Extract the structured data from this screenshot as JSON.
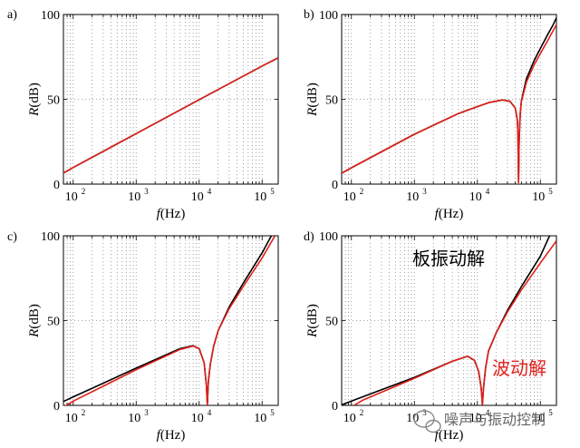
{
  "colors": {
    "black_curve": "#000000",
    "red_curve": "#e0201b",
    "grid": "#8a8a8a",
    "watermark": "#666666"
  },
  "panels": [
    {
      "label": "a)",
      "xlabel_italic": "f",
      "xlabel_rest": "(Hz)",
      "ylabel_italic": "R",
      "ylabel_rest": "(dB)",
      "yticks": [
        "0",
        "50",
        "100"
      ],
      "xticks": [
        {
          "base": "10",
          "exp": "2"
        },
        {
          "base": "10",
          "exp": "3"
        },
        {
          "base": "10",
          "exp": "4"
        },
        {
          "base": "10",
          "exp": "5"
        }
      ]
    },
    {
      "label": "b)",
      "xlabel_italic": "f",
      "xlabel_rest": "(Hz)",
      "ylabel_italic": "R",
      "ylabel_rest": "(dB)",
      "yticks": [
        "0",
        "50",
        "100"
      ],
      "xticks": [
        {
          "base": "10",
          "exp": "2"
        },
        {
          "base": "10",
          "exp": "3"
        },
        {
          "base": "10",
          "exp": "4"
        },
        {
          "base": "10",
          "exp": "5"
        }
      ]
    },
    {
      "label": "c)",
      "xlabel_italic": "f",
      "xlabel_rest": "(Hz)",
      "ylabel_italic": "R",
      "ylabel_rest": "(dB)",
      "yticks": [
        "0",
        "50",
        "100"
      ],
      "xticks": [
        {
          "base": "10",
          "exp": "2"
        },
        {
          "base": "10",
          "exp": "3"
        },
        {
          "base": "10",
          "exp": "4"
        },
        {
          "base": "10",
          "exp": "5"
        }
      ]
    },
    {
      "label": "d)",
      "xlabel_italic": "f",
      "xlabel_rest": "(Hz)",
      "ylabel_italic": "R",
      "ylabel_rest": "(dB)",
      "yticks": [
        "0",
        "50",
        "100"
      ],
      "xticks": [
        {
          "base": "10",
          "exp": "2"
        },
        {
          "base": "10",
          "exp": "3"
        },
        {
          "base": "10",
          "exp": "4"
        },
        {
          "base": "10",
          "exp": "5"
        }
      ],
      "annotations": [
        {
          "text": "板振动解",
          "color": "#000000"
        },
        {
          "text": "波动解",
          "color": "#e0201b"
        }
      ]
    }
  ],
  "watermark": {
    "text": "噪声与振动控制",
    "icon": "wechat-icon"
  },
  "chart_data": [
    {
      "type": "line",
      "panel": "a)",
      "xscale": "log",
      "xlim": [
        70,
        180000
      ],
      "ylim": [
        0,
        100
      ],
      "xlabel": "f(Hz)",
      "ylabel": "R(dB)",
      "grid": true,
      "series": [
        {
          "color": "#000000",
          "x": [
            70,
            100,
            1000,
            10000,
            100000,
            180000
          ],
          "y": [
            6.5,
            9.8,
            29.8,
            49.8,
            69.6,
            74.5
          ]
        },
        {
          "color": "#e0201b",
          "x": [
            70,
            100,
            1000,
            10000,
            100000,
            180000
          ],
          "y": [
            6.5,
            9.8,
            29.8,
            49.8,
            69.6,
            74.5
          ]
        }
      ]
    },
    {
      "type": "line",
      "panel": "b)",
      "xscale": "log",
      "xlim": [
        70,
        180000
      ],
      "ylim": [
        0,
        100
      ],
      "xlabel": "f(Hz)",
      "ylabel": "R(dB)",
      "grid": true,
      "series": [
        {
          "color": "#000000",
          "x": [
            70,
            100,
            1000,
            5000,
            15000,
            25000,
            33000,
            40000,
            43000,
            44000,
            45000,
            46000,
            47000,
            48000,
            50000,
            60000,
            80000,
            100000,
            130000,
            160000,
            180000
          ],
          "y": [
            6.4,
            9.6,
            29.4,
            41.6,
            48.0,
            49.6,
            48.8,
            44.8,
            38.0,
            30.0,
            1.0,
            24.0,
            35.0,
            42.0,
            49.0,
            62.0,
            73.0,
            80.0,
            88.0,
            94.0,
            98.0
          ]
        },
        {
          "color": "#e0201b",
          "x": [
            70,
            100,
            1000,
            5000,
            15000,
            25000,
            33000,
            40000,
            43000,
            44000,
            45000,
            46000,
            47000,
            48000,
            50000,
            60000,
            80000,
            100000,
            130000,
            160000,
            180000
          ],
          "y": [
            6.4,
            9.6,
            29.4,
            41.6,
            48.0,
            49.6,
            48.8,
            44.8,
            38.0,
            30.0,
            1.0,
            24.0,
            35.0,
            42.0,
            48.5,
            60.0,
            70.5,
            77.0,
            84.5,
            90.5,
            94.0
          ]
        }
      ]
    },
    {
      "type": "line",
      "panel": "c)",
      "xscale": "log",
      "xlim": [
        70,
        180000
      ],
      "ylim": [
        0,
        100
      ],
      "xlabel": "f(Hz)",
      "ylabel": "R(dB)",
      "grid": true,
      "series": [
        {
          "color": "#000000",
          "x": [
            70,
            100,
            1000,
            5000,
            8000,
            10000,
            12000,
            13000,
            13500,
            14000,
            15000,
            17000,
            20000,
            30000,
            50000,
            100000,
            140000
          ],
          "y": [
            2.3,
            5.0,
            22.0,
            33.5,
            35.2,
            33.5,
            25.0,
            12.0,
            0.5,
            14.0,
            24.0,
            35.0,
            44.0,
            58.0,
            72.0,
            90.0,
            100.0
          ]
        },
        {
          "color": "#e0201b",
          "x": [
            70,
            100,
            1000,
            5000,
            8000,
            10000,
            12000,
            13000,
            13500,
            14000,
            15000,
            17000,
            20000,
            30000,
            50000,
            100000,
            160000
          ],
          "y": [
            -1.0,
            2.5,
            21.0,
            33.0,
            35.0,
            33.5,
            25.0,
            12.0,
            0.5,
            14.0,
            24.0,
            35.0,
            44.0,
            57.0,
            70.0,
            87.0,
            100.0
          ]
        }
      ]
    },
    {
      "type": "line",
      "panel": "d)",
      "xscale": "log",
      "xlim": [
        70,
        180000
      ],
      "ylim": [
        0,
        100
      ],
      "xlabel": "f(Hz)",
      "ylabel": "R(dB)",
      "grid": true,
      "series": [
        {
          "color": "#000000",
          "x": [
            70,
            100,
            1000,
            4000,
            7000,
            9000,
            10500,
            11500,
            12000,
            12500,
            13500,
            15000,
            20000,
            30000,
            50000,
            100000,
            140000
          ],
          "y": [
            0.3,
            2.5,
            16.5,
            26.0,
            29.0,
            26.5,
            20.0,
            10.0,
            0.5,
            10.0,
            22.0,
            32.0,
            43.0,
            56.0,
            70.0,
            88.0,
            100.0
          ]
        },
        {
          "color": "#e0201b",
          "x": [
            110,
            150,
            1000,
            4000,
            7000,
            9000,
            10500,
            11500,
            12000,
            12500,
            13500,
            15000,
            20000,
            30000,
            50000,
            100000,
            180000
          ],
          "y": [
            0.0,
            3.0,
            16.0,
            26.0,
            29.0,
            26.5,
            20.0,
            10.0,
            0.5,
            10.0,
            22.0,
            32.0,
            43.0,
            55.0,
            68.0,
            84.0,
            97.0
          ]
        }
      ]
    }
  ]
}
